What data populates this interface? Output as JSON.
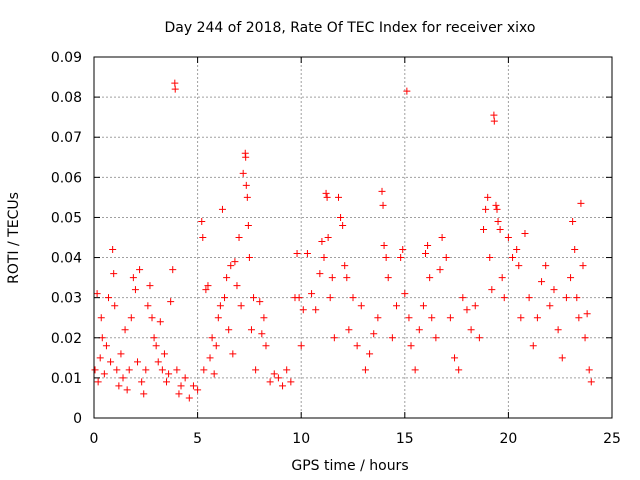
{
  "chart_data": {
    "type": "scatter",
    "title": "Day 244 of 2018, Rate Of TEC Index for receiver xixo",
    "xlabel": "GPS time / hours",
    "ylabel": "ROTI / TECUs",
    "xlim": [
      0,
      25
    ],
    "ylim": [
      0,
      0.09
    ],
    "xticks": [
      0,
      5,
      10,
      15,
      20,
      25
    ],
    "xtick_labels": [
      "0",
      "5",
      "10",
      "15",
      "20",
      "25"
    ],
    "yticks": [
      0,
      0.01,
      0.02,
      0.03,
      0.04,
      0.05,
      0.06,
      0.07,
      0.08,
      0.09
    ],
    "ytick_labels": [
      "0",
      "0.01",
      "0.02",
      "0.03",
      "0.04",
      "0.05",
      "0.06",
      "0.07",
      "0.08",
      "0.09"
    ],
    "grid": true,
    "marker": "plus",
    "color": "#ff0000",
    "series": [
      {
        "points": [
          [
            0.05,
            0.012
          ],
          [
            0.15,
            0.031
          ],
          [
            0.2,
            0.009
          ],
          [
            0.3,
            0.015
          ],
          [
            0.35,
            0.025
          ],
          [
            0.4,
            0.02
          ],
          [
            0.5,
            0.011
          ],
          [
            0.6,
            0.018
          ],
          [
            0.7,
            0.03
          ],
          [
            0.8,
            0.014
          ],
          [
            0.9,
            0.042
          ],
          [
            0.95,
            0.036
          ],
          [
            1.0,
            0.028
          ],
          [
            1.1,
            0.012
          ],
          [
            1.2,
            0.008
          ],
          [
            1.3,
            0.016
          ],
          [
            1.4,
            0.01
          ],
          [
            1.5,
            0.022
          ],
          [
            1.6,
            0.007
          ],
          [
            1.7,
            0.012
          ],
          [
            1.8,
            0.025
          ],
          [
            1.9,
            0.035
          ],
          [
            2.0,
            0.032
          ],
          [
            2.1,
            0.014
          ],
          [
            2.2,
            0.037
          ],
          [
            2.3,
            0.009
          ],
          [
            2.4,
            0.006
          ],
          [
            2.5,
            0.012
          ],
          [
            2.6,
            0.028
          ],
          [
            2.7,
            0.033
          ],
          [
            2.8,
            0.025
          ],
          [
            2.9,
            0.02
          ],
          [
            3.0,
            0.018
          ],
          [
            3.1,
            0.014
          ],
          [
            3.2,
            0.024
          ],
          [
            3.3,
            0.012
          ],
          [
            3.4,
            0.016
          ],
          [
            3.5,
            0.009
          ],
          [
            3.6,
            0.011
          ],
          [
            3.7,
            0.029
          ],
          [
            3.8,
            0.037
          ],
          [
            3.9,
            0.0835
          ],
          [
            3.92,
            0.082
          ],
          [
            4.0,
            0.012
          ],
          [
            4.1,
            0.006
          ],
          [
            4.2,
            0.008
          ],
          [
            4.4,
            0.01
          ],
          [
            4.6,
            0.005
          ],
          [
            4.8,
            0.008
          ],
          [
            5.0,
            0.007
          ],
          [
            5.2,
            0.049
          ],
          [
            5.25,
            0.045
          ],
          [
            5.3,
            0.012
          ],
          [
            5.4,
            0.032
          ],
          [
            5.5,
            0.033
          ],
          [
            5.6,
            0.015
          ],
          [
            5.7,
            0.02
          ],
          [
            5.8,
            0.011
          ],
          [
            5.9,
            0.018
          ],
          [
            6.0,
            0.025
          ],
          [
            6.1,
            0.028
          ],
          [
            6.2,
            0.052
          ],
          [
            6.3,
            0.03
          ],
          [
            6.4,
            0.035
          ],
          [
            6.5,
            0.022
          ],
          [
            6.6,
            0.038
          ],
          [
            6.7,
            0.016
          ],
          [
            6.8,
            0.039
          ],
          [
            6.9,
            0.033
          ],
          [
            7.0,
            0.045
          ],
          [
            7.1,
            0.028
          ],
          [
            7.2,
            0.061
          ],
          [
            7.3,
            0.066
          ],
          [
            7.32,
            0.065
          ],
          [
            7.35,
            0.058
          ],
          [
            7.4,
            0.055
          ],
          [
            7.45,
            0.048
          ],
          [
            7.5,
            0.04
          ],
          [
            7.6,
            0.022
          ],
          [
            7.7,
            0.03
          ],
          [
            7.8,
            0.012
          ],
          [
            8.0,
            0.029
          ],
          [
            8.1,
            0.021
          ],
          [
            8.2,
            0.025
          ],
          [
            8.3,
            0.018
          ],
          [
            8.5,
            0.009
          ],
          [
            8.7,
            0.011
          ],
          [
            8.9,
            0.01
          ],
          [
            9.1,
            0.008
          ],
          [
            9.3,
            0.012
          ],
          [
            9.5,
            0.009
          ],
          [
            9.7,
            0.03
          ],
          [
            9.8,
            0.041
          ],
          [
            9.9,
            0.03
          ],
          [
            10.0,
            0.018
          ],
          [
            10.1,
            0.027
          ],
          [
            10.3,
            0.041
          ],
          [
            10.5,
            0.031
          ],
          [
            10.7,
            0.027
          ],
          [
            10.9,
            0.036
          ],
          [
            11.0,
            0.044
          ],
          [
            11.1,
            0.04
          ],
          [
            11.2,
            0.056
          ],
          [
            11.25,
            0.055
          ],
          [
            11.3,
            0.045
          ],
          [
            11.4,
            0.03
          ],
          [
            11.5,
            0.035
          ],
          [
            11.6,
            0.02
          ],
          [
            11.8,
            0.055
          ],
          [
            11.9,
            0.05
          ],
          [
            12.0,
            0.048
          ],
          [
            12.1,
            0.038
          ],
          [
            12.2,
            0.035
          ],
          [
            12.3,
            0.022
          ],
          [
            12.5,
            0.03
          ],
          [
            12.7,
            0.018
          ],
          [
            12.9,
            0.028
          ],
          [
            13.1,
            0.012
          ],
          [
            13.3,
            0.016
          ],
          [
            13.5,
            0.021
          ],
          [
            13.7,
            0.025
          ],
          [
            13.9,
            0.0565
          ],
          [
            13.95,
            0.053
          ],
          [
            14.0,
            0.043
          ],
          [
            14.1,
            0.04
          ],
          [
            14.2,
            0.035
          ],
          [
            14.4,
            0.02
          ],
          [
            14.6,
            0.028
          ],
          [
            14.8,
            0.04
          ],
          [
            14.9,
            0.042
          ],
          [
            15.0,
            0.031
          ],
          [
            15.1,
            0.0815
          ],
          [
            15.2,
            0.025
          ],
          [
            15.3,
            0.018
          ],
          [
            15.5,
            0.012
          ],
          [
            15.7,
            0.022
          ],
          [
            15.9,
            0.028
          ],
          [
            16.0,
            0.041
          ],
          [
            16.1,
            0.043
          ],
          [
            16.2,
            0.035
          ],
          [
            16.3,
            0.025
          ],
          [
            16.5,
            0.02
          ],
          [
            16.7,
            0.037
          ],
          [
            16.8,
            0.045
          ],
          [
            17.0,
            0.04
          ],
          [
            17.2,
            0.025
          ],
          [
            17.4,
            0.015
          ],
          [
            17.6,
            0.012
          ],
          [
            17.8,
            0.03
          ],
          [
            18.0,
            0.027
          ],
          [
            18.2,
            0.022
          ],
          [
            18.4,
            0.028
          ],
          [
            18.6,
            0.02
          ],
          [
            18.8,
            0.047
          ],
          [
            18.9,
            0.052
          ],
          [
            19.0,
            0.055
          ],
          [
            19.1,
            0.04
          ],
          [
            19.2,
            0.032
          ],
          [
            19.3,
            0.0755
          ],
          [
            19.32,
            0.074
          ],
          [
            19.4,
            0.053
          ],
          [
            19.45,
            0.052
          ],
          [
            19.5,
            0.049
          ],
          [
            19.6,
            0.047
          ],
          [
            19.7,
            0.035
          ],
          [
            19.8,
            0.03
          ],
          [
            20.0,
            0.045
          ],
          [
            20.2,
            0.04
          ],
          [
            20.4,
            0.042
          ],
          [
            20.5,
            0.038
          ],
          [
            20.6,
            0.025
          ],
          [
            20.8,
            0.046
          ],
          [
            21.0,
            0.03
          ],
          [
            21.2,
            0.018
          ],
          [
            21.4,
            0.025
          ],
          [
            21.6,
            0.034
          ],
          [
            21.8,
            0.038
          ],
          [
            22.0,
            0.028
          ],
          [
            22.2,
            0.032
          ],
          [
            22.4,
            0.022
          ],
          [
            22.6,
            0.015
          ],
          [
            22.8,
            0.03
          ],
          [
            23.0,
            0.035
          ],
          [
            23.1,
            0.049
          ],
          [
            23.2,
            0.042
          ],
          [
            23.3,
            0.03
          ],
          [
            23.4,
            0.025
          ],
          [
            23.5,
            0.0535
          ],
          [
            23.6,
            0.038
          ],
          [
            23.7,
            0.02
          ],
          [
            23.8,
            0.026
          ],
          [
            23.9,
            0.012
          ],
          [
            24.0,
            0.009
          ]
        ]
      }
    ]
  }
}
